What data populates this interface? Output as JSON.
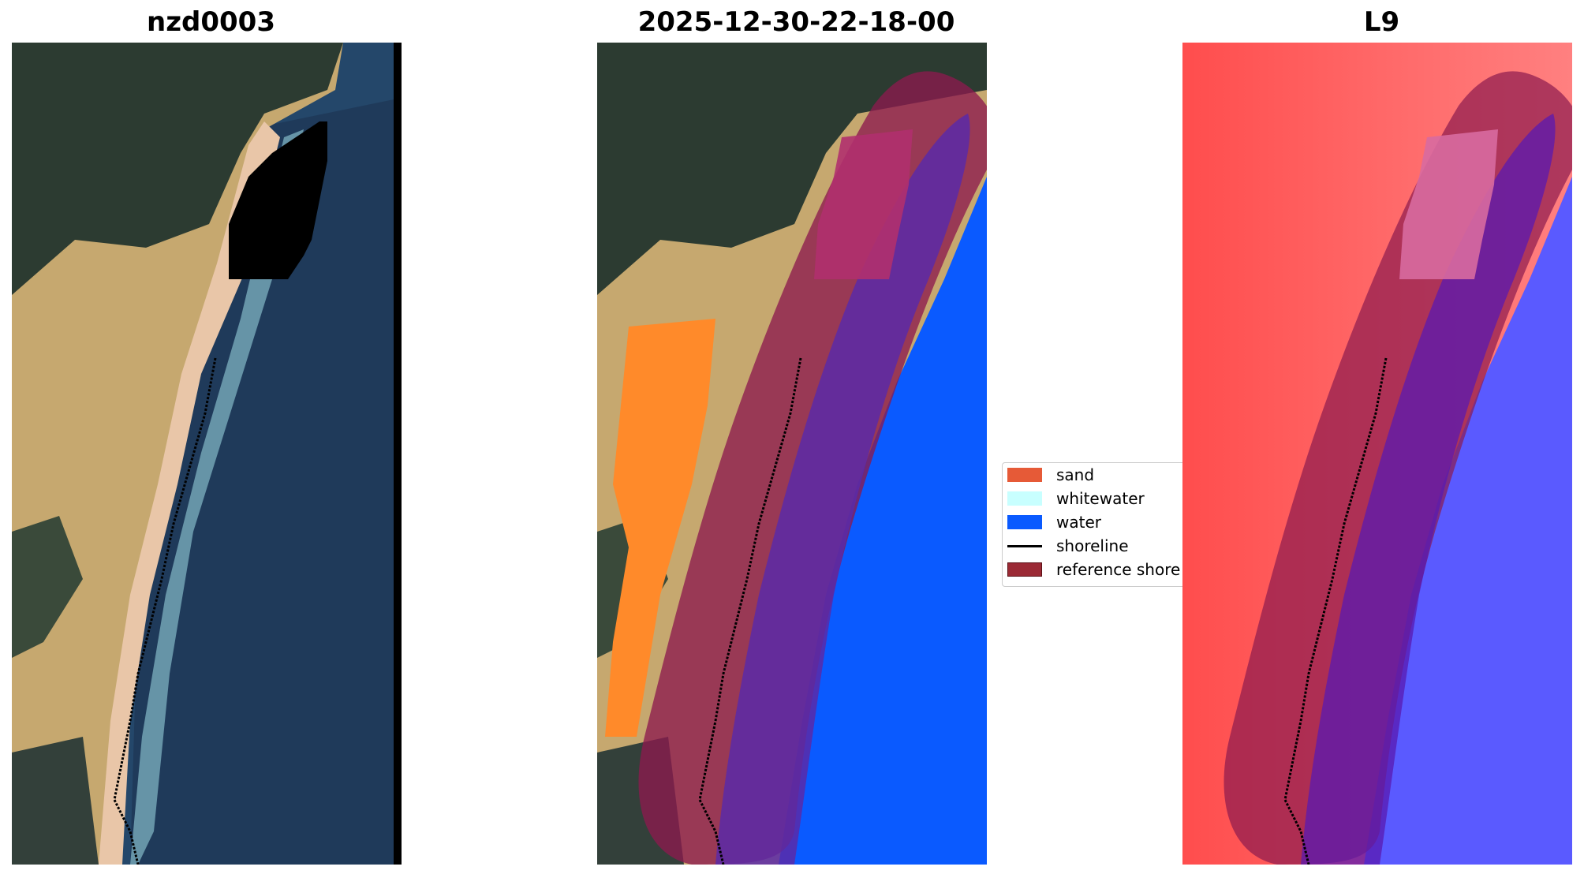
{
  "panels": [
    {
      "title": "nzd0003"
    },
    {
      "title": "2025-12-30-22-18-00"
    },
    {
      "title": "L9"
    }
  ],
  "legend": {
    "items": [
      {
        "label": "sand",
        "color": "#e65a37"
      },
      {
        "label": "whitewater",
        "color": "#c8ffff"
      },
      {
        "label": "water",
        "color": "#0a5aff"
      },
      {
        "label": "shoreline",
        "color": "#000000"
      },
      {
        "label": "reference shore",
        "color": "#9b2a35"
      }
    ]
  },
  "colors": {
    "water_dark": "#1e3656",
    "sea": "#245477",
    "sand_beach": "#e9c6a8",
    "dunes": "#c6a86f",
    "forest": "#2c3b31",
    "sand_class": "#ff8a2a",
    "water_class": "#0a5aff",
    "reference_buffer": "#8c1a4e",
    "index_red": "#ff4d4d",
    "index_blue": "#5a5aff"
  }
}
